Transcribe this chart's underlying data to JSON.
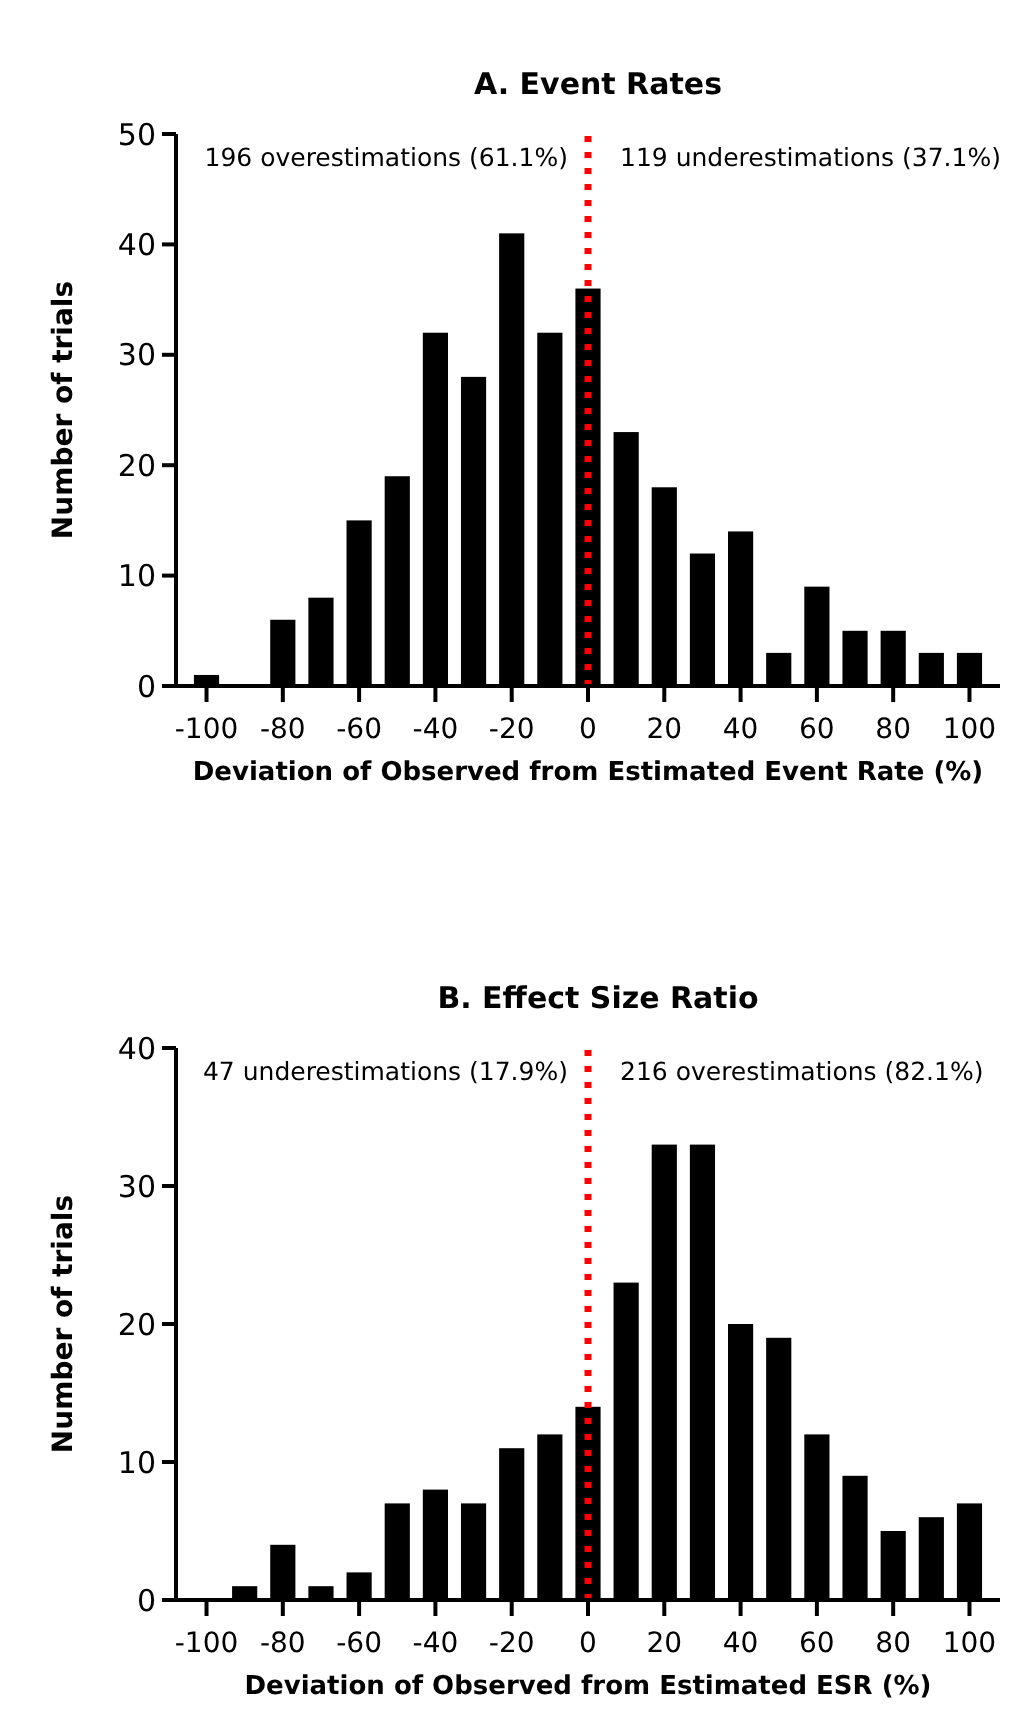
{
  "chart_data": [
    {
      "type": "bar",
      "title": "A. Event Rates",
      "xlabel": "Deviation of Observed from Estimated Event Rate (%)",
      "ylabel": "Number of trials",
      "x": [
        -100,
        -90,
        -80,
        -70,
        -60,
        -50,
        -40,
        -30,
        -20,
        -10,
        0,
        10,
        20,
        30,
        40,
        50,
        60,
        70,
        80,
        90,
        100
      ],
      "values": [
        1,
        0,
        6,
        8,
        15,
        19,
        32,
        28,
        41,
        32,
        36,
        23,
        18,
        12,
        14,
        3,
        9,
        5,
        5,
        3,
        3
      ],
      "color": "#000000",
      "xlim": [
        -108,
        108
      ],
      "xticks": [
        -100,
        -80,
        -60,
        -40,
        -20,
        0,
        20,
        40,
        60,
        80,
        100
      ],
      "ylim": [
        0,
        50
      ],
      "yticks": [
        0,
        10,
        20,
        30,
        40,
        50
      ],
      "ref_lines": [
        {
          "axis": "x",
          "value": 0,
          "color": "#ff0000",
          "line_style": "dotted"
        }
      ],
      "annotations": [
        "196 overestimations (61.1%)",
        "119 underestimations (37.1%)"
      ]
    },
    {
      "type": "bar",
      "title": "B. Effect Size Ratio",
      "xlabel": "Deviation of Observed from Estimated ESR (%)",
      "ylabel": "Number of trials",
      "x": [
        -100,
        -90,
        -80,
        -70,
        -60,
        -50,
        -40,
        -30,
        -20,
        -10,
        0,
        10,
        20,
        30,
        40,
        50,
        60,
        70,
        80,
        90,
        100
      ],
      "values": [
        0,
        1,
        4,
        1,
        2,
        7,
        8,
        7,
        11,
        12,
        14,
        23,
        33,
        33,
        20,
        19,
        12,
        9,
        5,
        6,
        7
      ],
      "color": "#000000",
      "xlim": [
        -108,
        108
      ],
      "xticks": [
        -100,
        -80,
        -60,
        -40,
        -20,
        0,
        20,
        40,
        60,
        80,
        100
      ],
      "ylim": [
        0,
        40
      ],
      "yticks": [
        0,
        10,
        20,
        30,
        40
      ],
      "ref_lines": [
        {
          "axis": "x",
          "value": 0,
          "color": "#ff0000",
          "line_style": "dotted"
        }
      ],
      "annotations": [
        "47 underestimations (17.9%)",
        "216 overestimations (82.1%)"
      ]
    }
  ]
}
